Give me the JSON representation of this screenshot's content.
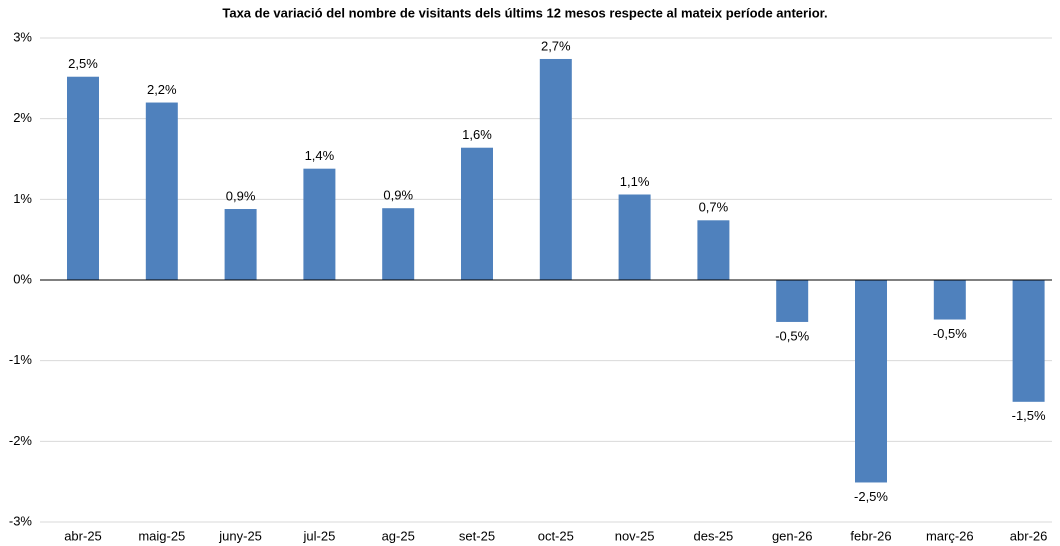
{
  "chart_data": {
    "type": "bar",
    "title": "Taxa de variació del nombre de visitants dels últims 12 mesos respecte al mateix període anterior.",
    "categories": [
      "abr-25",
      "maig-25",
      "juny-25",
      "jul-25",
      "ag-25",
      "set-25",
      "oct-25",
      "nov-25",
      "des-25",
      "gen-26",
      "febr-26",
      "març-26",
      "abr-26"
    ],
    "values": [
      2.52,
      2.2,
      0.88,
      1.38,
      0.89,
      1.64,
      2.74,
      1.06,
      0.74,
      -0.52,
      -2.51,
      -0.49,
      -1.51
    ],
    "value_labels": [
      "2,5%",
      "2,2%",
      "0,9%",
      "1,4%",
      "0,9%",
      "1,6%",
      "2,7%",
      "1,1%",
      "0,7%",
      "-0,5%",
      "-2,5%",
      "-0,5%",
      "-1,5%"
    ],
    "color": "#4f81bd",
    "ylim": [
      -3,
      3
    ],
    "yticks": [
      {
        "value": -3,
        "label": "-3%"
      },
      {
        "value": -2,
        "label": "-2%"
      },
      {
        "value": -1,
        "label": "-1%"
      },
      {
        "value": 0,
        "label": "0%"
      },
      {
        "value": 1,
        "label": "1%"
      },
      {
        "value": 2,
        "label": "2%"
      },
      {
        "value": 3,
        "label": "3%"
      }
    ],
    "grid": true
  }
}
